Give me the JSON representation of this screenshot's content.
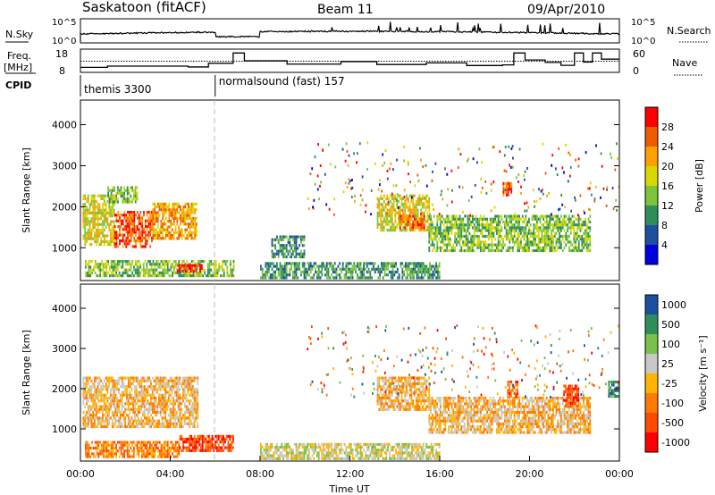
{
  "header": {
    "station": "Saskatoon (fitACF)",
    "beam": "Beam 11",
    "date": "09/Apr/2010"
  },
  "top_panels": {
    "nsky_label": "N.Sky",
    "nsky_ticks": [
      "10^5",
      "10^0"
    ],
    "nsearch_label": "N.Search",
    "nsearch_ticks": [
      "10^5",
      "10^0"
    ],
    "freq_label": "Freq.",
    "freq_unit": "[MHz]",
    "freq_ticks": [
      "18",
      "8"
    ],
    "nave_label": "Nave",
    "nave_ticks": [
      "60",
      "0"
    ],
    "cpid_label": "CPID",
    "cpid_segments": [
      {
        "label": "themis 3300",
        "start": 0,
        "end": 6
      },
      {
        "label": "normalsound (fast) 157",
        "start": 6,
        "end": 24
      }
    ],
    "freq_series": [
      [
        0,
        10
      ],
      [
        1.2,
        10.6
      ],
      [
        4.8,
        10.2
      ],
      [
        5.7,
        12
      ],
      [
        6.8,
        17
      ],
      [
        7.3,
        13.2
      ],
      [
        9.2,
        11.6
      ],
      [
        11.6,
        12.8
      ],
      [
        13.2,
        11.4
      ],
      [
        15.4,
        12.2
      ],
      [
        17.2,
        10.9
      ],
      [
        18.8,
        11.2
      ],
      [
        19.3,
        17
      ],
      [
        19.8,
        13.6
      ],
      [
        20.7,
        12.4
      ],
      [
        21.4,
        11
      ],
      [
        22,
        17
      ],
      [
        22.4,
        12.6
      ],
      [
        22.8,
        17
      ],
      [
        23.2,
        14
      ],
      [
        24,
        14
      ]
    ],
    "nave_ref_series": [
      [
        0,
        13
      ],
      [
        24,
        13
      ]
    ]
  },
  "power_colorbar": {
    "label": "Power [dB]",
    "ticks": [
      "28",
      "24",
      "20",
      "16",
      "12",
      "8",
      "4"
    ],
    "colors": [
      "#ff0000",
      "#f05a00",
      "#ff9f00",
      "#d8d800",
      "#7cc43a",
      "#2f8f5a",
      "#1c4fa0",
      "#0000e0"
    ]
  },
  "velocity_colorbar": {
    "label": "Velocity [m s⁻¹]",
    "ticks": [
      "1000",
      "500",
      "100",
      "25",
      "-25",
      "-100",
      "-500",
      "-1000"
    ],
    "colors": [
      "#1c4fa0",
      "#2f8f5a",
      "#7ac04a",
      "#c8c8c8",
      "#ffb400",
      "#ff7a00",
      "#ff4a00",
      "#ff0000"
    ]
  },
  "chart_data": [
    {
      "type": "heatmap",
      "name": "power",
      "ylabel": "Slant Range [km]",
      "yticks": [
        "4000",
        "3000",
        "2000",
        "1000"
      ],
      "ylim": [
        200,
        4600
      ],
      "xlim": [
        0,
        24
      ],
      "regions": [
        {
          "t": [
            0.1,
            1.5
          ],
          "r": [
            1100,
            2300
          ],
          "level": 4
        },
        {
          "t": [
            1.5,
            3.2
          ],
          "r": [
            1050,
            1900
          ],
          "level": 6
        },
        {
          "t": [
            3.2,
            5.2
          ],
          "r": [
            1200,
            2100
          ],
          "level": 5
        },
        {
          "t": [
            1.2,
            2.5
          ],
          "r": [
            2100,
            2500
          ],
          "level": 3
        },
        {
          "t": [
            0.2,
            6.8
          ],
          "r": [
            300,
            700
          ],
          "level": 3
        },
        {
          "t": [
            4.3,
            5.4
          ],
          "r": [
            400,
            600
          ],
          "level": 7
        },
        {
          "t": [
            8.5,
            10
          ],
          "r": [
            800,
            1300
          ],
          "level": 2
        },
        {
          "t": [
            8,
            16
          ],
          "r": [
            250,
            650
          ],
          "level": 2
        },
        {
          "t": [
            13.2,
            15.5
          ],
          "r": [
            1400,
            2300
          ],
          "level": 4
        },
        {
          "t": [
            14.2,
            15.3
          ],
          "r": [
            1500,
            1800
          ],
          "level": 6
        },
        {
          "t": [
            15.5,
            22.7
          ],
          "r": [
            900,
            1800
          ],
          "level": 3
        },
        {
          "t": [
            18.8,
            19.2
          ],
          "r": [
            2300,
            2600
          ],
          "level": 6
        }
      ]
    },
    {
      "type": "heatmap",
      "name": "velocity",
      "ylabel": "Slant Range [km]",
      "yticks": [
        "4000",
        "3000",
        "2000",
        "1000"
      ],
      "ylim": [
        200,
        4600
      ],
      "xlim": [
        0,
        24
      ],
      "xticks": [
        "00:00",
        "04:00",
        "08:00",
        "12:00",
        "16:00",
        "20:00",
        "00:00"
      ],
      "xlabel": "Time UT",
      "regions": [
        {
          "t": [
            0.1,
            5.2
          ],
          "r": [
            1050,
            2300
          ],
          "level": 3
        },
        {
          "t": [
            0.2,
            4.4
          ],
          "r": [
            300,
            700
          ],
          "level": 2
        },
        {
          "t": [
            4.4,
            6.8
          ],
          "r": [
            450,
            850
          ],
          "level": 1
        },
        {
          "t": [
            8,
            16
          ],
          "r": [
            250,
            650
          ],
          "level": 4
        },
        {
          "t": [
            13.2,
            15.5
          ],
          "r": [
            1500,
            2300
          ],
          "level": 3
        },
        {
          "t": [
            15.5,
            22.7
          ],
          "r": [
            900,
            1800
          ],
          "level": 3
        },
        {
          "t": [
            19,
            19.5
          ],
          "r": [
            1800,
            2200
          ],
          "level": 1
        },
        {
          "t": [
            21.5,
            22.2
          ],
          "r": [
            1600,
            2100
          ],
          "level": 1
        },
        {
          "t": [
            23.5,
            24
          ],
          "r": [
            1800,
            2200
          ],
          "level": 6
        }
      ]
    }
  ]
}
